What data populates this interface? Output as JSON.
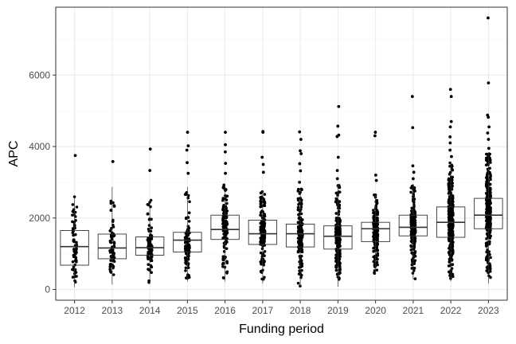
{
  "chart_data": {
    "type": "boxplot",
    "title": "",
    "xlabel": "Funding period",
    "ylabel": "APC",
    "ylim": [
      -300,
      7900
    ],
    "y_ticks": [
      0,
      2000,
      4000,
      6000
    ],
    "y_tick_labels": [
      "0",
      "2000",
      "4000",
      "6000"
    ],
    "grid": true,
    "theme": {
      "panel_border": "#333333",
      "grid_major": "#ebebeb",
      "grid_minor": "#f5f5f5",
      "box_stroke": "#333333",
      "point_fill": "#000000"
    },
    "categories": [
      "2012",
      "2013",
      "2014",
      "2015",
      "2016",
      "2017",
      "2018",
      "2019",
      "2020",
      "2021",
      "2022",
      "2023"
    ],
    "boxes": [
      {
        "category": "2012",
        "q1": 680,
        "median": 1200,
        "q3": 1650,
        "whisker_low": 60,
        "whisker_high": 2600,
        "outliers": [
          3750
        ],
        "n_points": 70
      },
      {
        "category": "2013",
        "q1": 860,
        "median": 1160,
        "q3": 1550,
        "whisker_low": 140,
        "whisker_high": 2870,
        "outliers": [
          3580
        ],
        "n_points": 70
      },
      {
        "category": "2014",
        "q1": 960,
        "median": 1170,
        "q3": 1470,
        "whisker_low": 150,
        "whisker_high": 2500,
        "outliers": [
          3330,
          3930
        ],
        "n_points": 80
      },
      {
        "category": "2015",
        "q1": 1050,
        "median": 1380,
        "q3": 1600,
        "whisker_low": 230,
        "whisker_high": 2870,
        "outliers": [
          3250,
          3550,
          3900,
          4020,
          4400
        ],
        "n_points": 110
      },
      {
        "category": "2016",
        "q1": 1400,
        "median": 1680,
        "q3": 2080,
        "whisker_low": 230,
        "whisker_high": 2950,
        "outliers": [
          3250,
          3530,
          3850,
          4050,
          4400
        ],
        "n_points": 130
      },
      {
        "category": "2017",
        "q1": 1260,
        "median": 1560,
        "q3": 1940,
        "whisker_low": 170,
        "whisker_high": 2750,
        "outliers": [
          3280,
          3500,
          3700,
          4400,
          4420
        ],
        "n_points": 140
      },
      {
        "category": "2018",
        "q1": 1190,
        "median": 1560,
        "q3": 1830,
        "whisker_low": 90,
        "whisker_high": 2820,
        "outliers": [
          3000,
          3320,
          3520,
          3800,
          3880,
          4200,
          4410
        ],
        "n_points": 150
      },
      {
        "category": "2019",
        "q1": 1130,
        "median": 1490,
        "q3": 1780,
        "whisker_low": 80,
        "whisker_high": 2950,
        "outliers": [
          3100,
          3330,
          3700,
          4280,
          4320,
          4570,
          5120
        ],
        "n_points": 220
      },
      {
        "category": "2020",
        "q1": 1340,
        "median": 1700,
        "q3": 1880,
        "whisker_low": 430,
        "whisker_high": 2650,
        "outliers": [
          3050,
          3200,
          4300,
          4400
        ],
        "n_points": 180
      },
      {
        "category": "2021",
        "q1": 1500,
        "median": 1740,
        "q3": 2080,
        "whisker_low": 280,
        "whisker_high": 2950,
        "outliers": [
          3100,
          3280,
          3460,
          4530,
          5400
        ],
        "n_points": 200
      },
      {
        "category": "2022",
        "q1": 1460,
        "median": 1880,
        "q3": 2310,
        "whisker_low": 230,
        "whisker_high": 3570,
        "outliers": [
          3720,
          3900,
          4100,
          4270,
          4550,
          4700,
          5400,
          5600
        ],
        "n_points": 320
      },
      {
        "category": "2023",
        "q1": 1700,
        "median": 2080,
        "q3": 2550,
        "whisker_low": 170,
        "whisker_high": 3830,
        "outliers": [
          3950,
          4200,
          4380,
          4550,
          4820,
          4880,
          5780,
          7600
        ],
        "n_points": 330
      }
    ]
  }
}
